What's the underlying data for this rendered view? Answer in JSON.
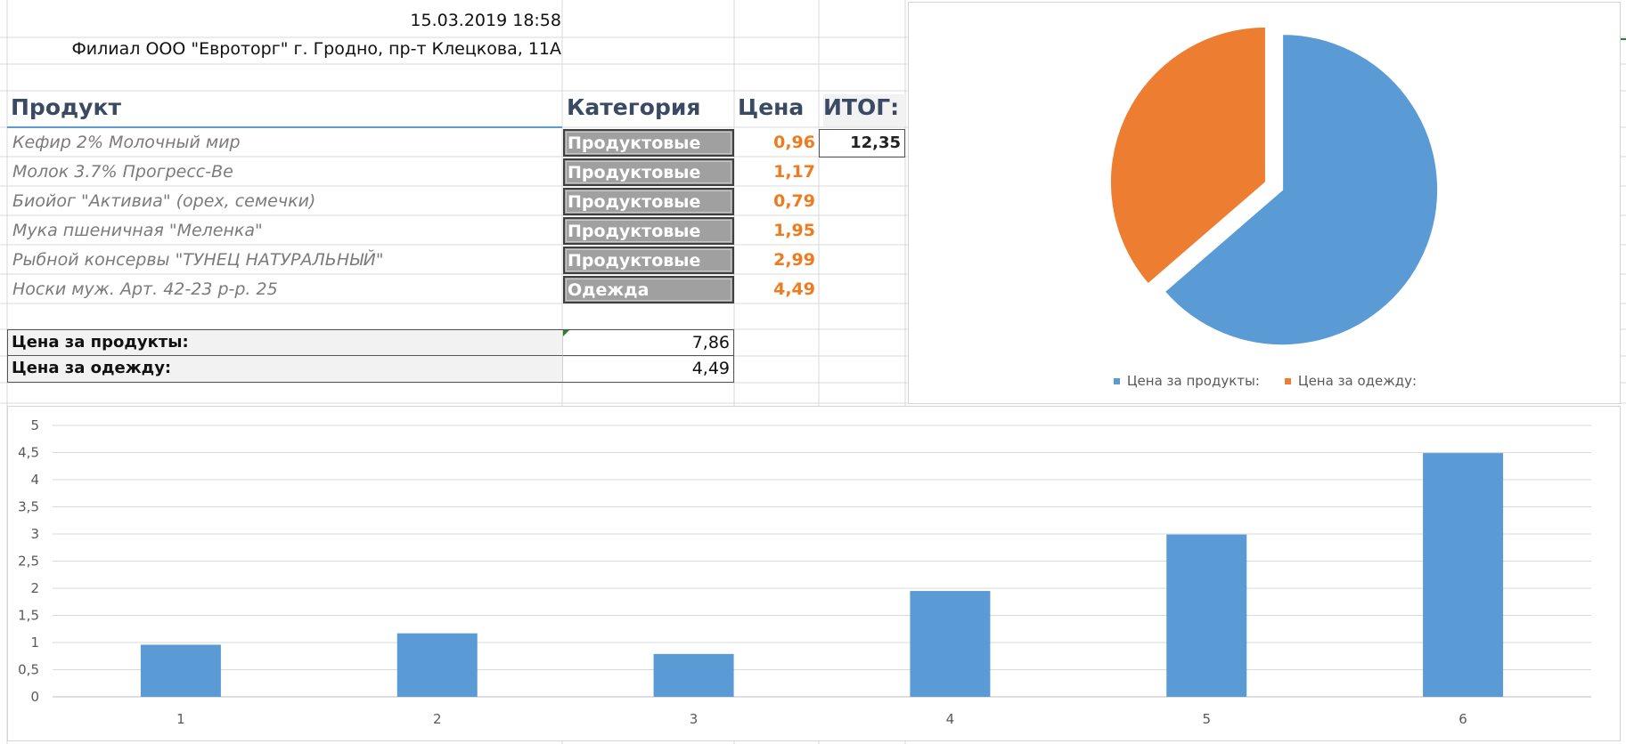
{
  "header": {
    "datetime": "15.03.2019 18:58",
    "store": "Филиал ООО \"Евроторг\" г. Гродно, пр-т Клецкова, 11А"
  },
  "table": {
    "columns": [
      "Продукт",
      "Категория",
      "Цена",
      "ИТОГ:"
    ],
    "rows": [
      {
        "product": "Кефир 2% Молочный мир",
        "category": "Продуктовые",
        "price": "0,96"
      },
      {
        "product": "Молок 3.7% Прогресс-Ве",
        "category": "Продуктовые",
        "price": "1,17"
      },
      {
        "product": "Биойог \"Активиа\" (орех, семечки)",
        "category": "Продуктовые",
        "price": "0,79"
      },
      {
        "product": "Мука пшеничная \"Меленка\"",
        "category": "Продуктовые",
        "price": "1,95"
      },
      {
        "product": "Рыбной консервы \"ТУНЕЦ НАТУРАЛЬНЫЙ\"",
        "category": "Продуктовые",
        "price": "2,99"
      },
      {
        "product": "Носки муж. Арт. 42-23 р-р. 25",
        "category": "Одежда",
        "price": "4,49"
      }
    ],
    "total": "12,35"
  },
  "summary": [
    {
      "label": "Цена за продукты:",
      "value": "7,86"
    },
    {
      "label": "Цена за одежду:",
      "value": "4,49"
    }
  ],
  "colors": {
    "blue": "#5b9bd5",
    "orange": "#ed7d31",
    "header_text": "#3a4a63",
    "price_text": "#f07a1e",
    "category_fill": "#a0a0a0"
  },
  "chart_data": [
    {
      "type": "pie",
      "labels": [
        "Цена за продукты:",
        "Цена за одежду:"
      ],
      "values": [
        7.86,
        4.49
      ],
      "colors": [
        "#5b9bd5",
        "#ed7d31"
      ],
      "legend": "bottom"
    },
    {
      "type": "bar",
      "categories": [
        "1",
        "2",
        "3",
        "4",
        "5",
        "6"
      ],
      "values": [
        0.96,
        1.17,
        0.79,
        1.95,
        2.99,
        4.49
      ],
      "ylim": [
        0,
        5
      ],
      "yticks": [
        "0",
        "0,5",
        "1",
        "1,5",
        "2",
        "2,5",
        "3",
        "3,5",
        "4",
        "4,5",
        "5"
      ],
      "grid": true,
      "color": "#5b9bd5"
    }
  ]
}
